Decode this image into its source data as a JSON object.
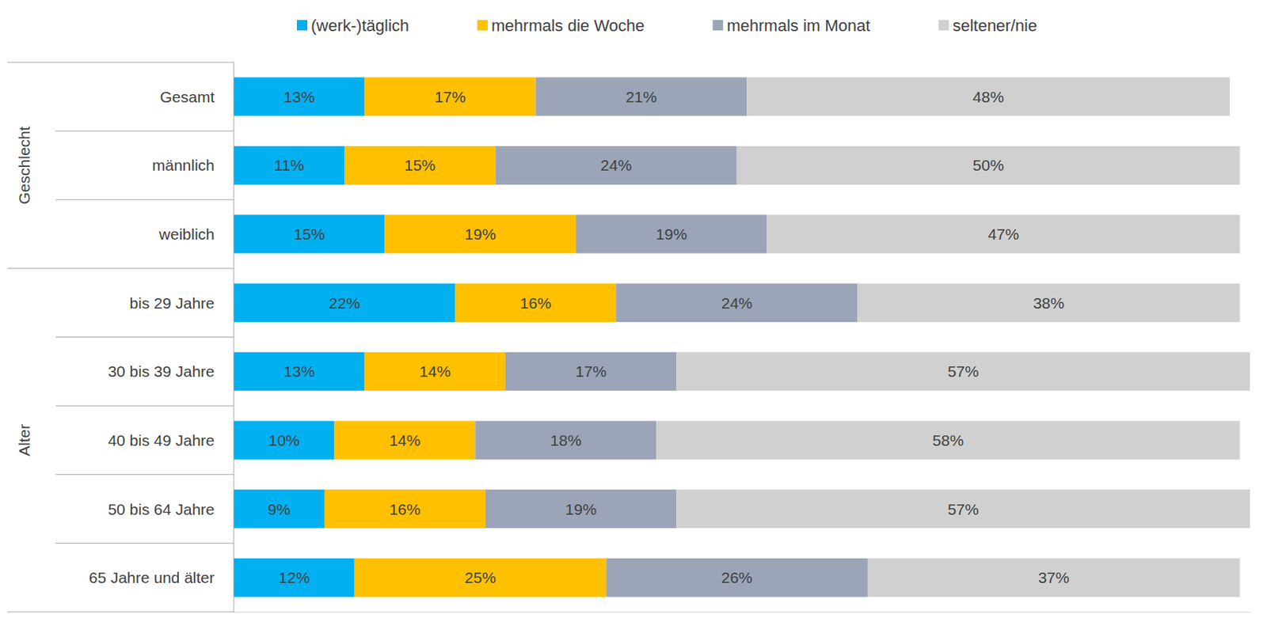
{
  "chart_data": {
    "type": "bar",
    "orientation": "horizontal",
    "stacked": true,
    "data_labels": true,
    "tick_labels": "y",
    "grid": false,
    "legend": "top",
    "categories": [
      "Gesamt",
      "männlich",
      "weiblich",
      "bis 29 Jahre",
      "30 bis 39 Jahre",
      "40 bis 49 Jahre",
      "50 bis 64 Jahre",
      "65 Jahre und älter"
    ],
    "category_groups": [
      {
        "label": "Geschlecht",
        "members": [
          "Gesamt",
          "männlich",
          "weiblich"
        ]
      },
      {
        "label": "Alter",
        "members": [
          "bis 29 Jahre",
          "30 bis 39 Jahre",
          "40 bis 49 Jahre",
          "50 bis 64 Jahre",
          "65 Jahre und älter"
        ]
      }
    ],
    "xlim": [
      0,
      101
    ],
    "series": [
      {
        "name": "(werk-)täglich",
        "color": "#00B0F0",
        "values": [
          13,
          11,
          15,
          22,
          13,
          10,
          9,
          12
        ],
        "value_labels": [
          "13%",
          "11%",
          "15%",
          "22%",
          "13%",
          "10%",
          "9%",
          "12%"
        ]
      },
      {
        "name": "mehrmals die Woche",
        "color": "#FFC000",
        "values": [
          17,
          15,
          19,
          16,
          14,
          14,
          16,
          25
        ],
        "value_labels": [
          "17%",
          "15%",
          "19%",
          "16%",
          "14%",
          "14%",
          "16%",
          "25%"
        ]
      },
      {
        "name": "mehrmals im Monat",
        "color": "#9BA5B7",
        "values": [
          21,
          24,
          19,
          24,
          17,
          18,
          19,
          26
        ],
        "value_labels": [
          "21%",
          "24%",
          "19%",
          "24%",
          "17%",
          "18%",
          "19%",
          "26%"
        ]
      },
      {
        "name": "seltener/nie",
        "color": "#D0D0D0",
        "values": [
          48,
          50,
          47,
          38,
          57,
          58,
          57,
          37
        ],
        "value_labels": [
          "48%",
          "50%",
          "47%",
          "38%",
          "57%",
          "58%",
          "57%",
          "37%"
        ]
      }
    ]
  }
}
